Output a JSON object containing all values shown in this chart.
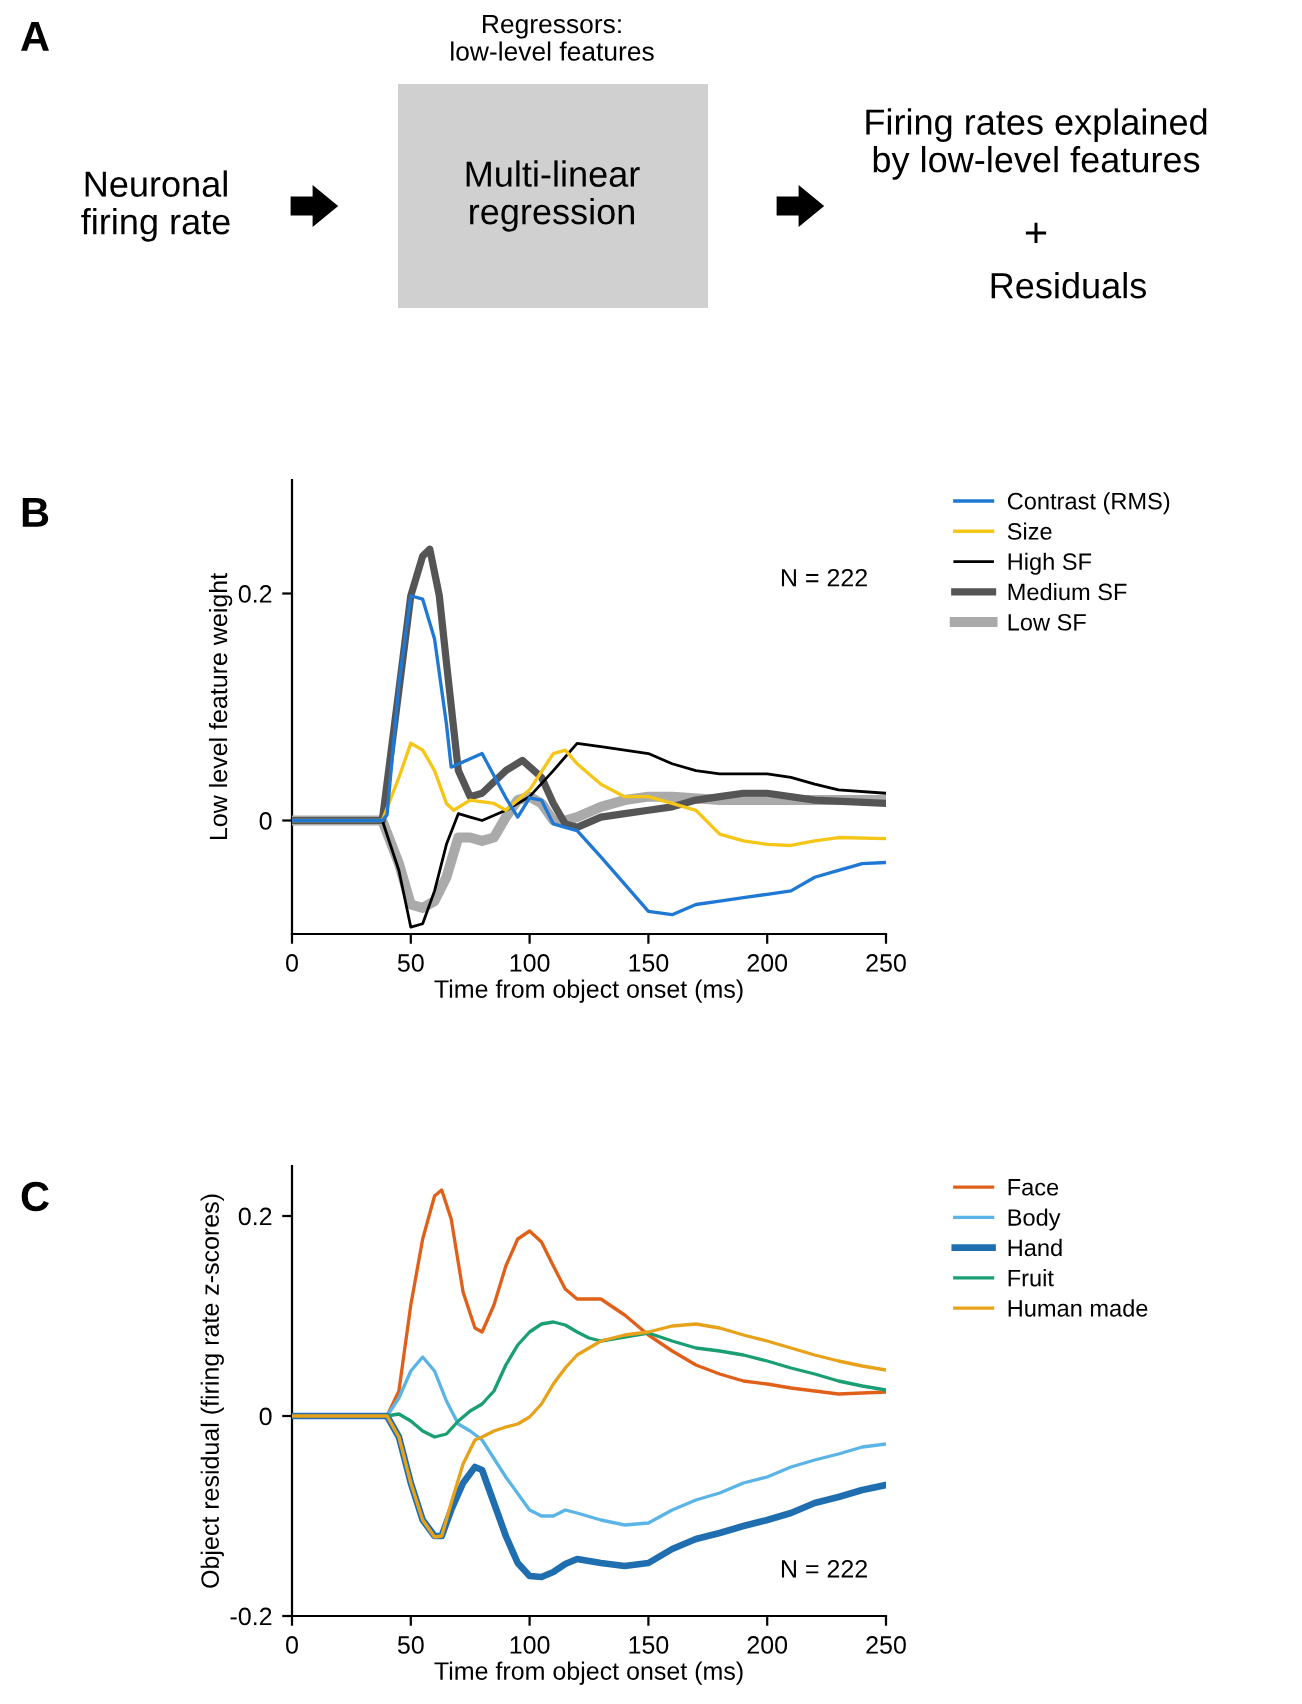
{
  "chart_data": [
    {
      "type": "other",
      "title": "A",
      "annotations": [
        "Neuronal\nfiring rate",
        "Regressors:\nlow-level features",
        "Multi-linear\nregression",
        "Firing rates explained\nby low-level features",
        "+",
        "Residuals"
      ]
    },
    {
      "type": "line",
      "title": "B",
      "xlabel": "Time from object onset (ms)",
      "ylabel": "Low level feature weight",
      "xlim": [
        0,
        250
      ],
      "ylim": [
        -0.1,
        0.3
      ],
      "xticks": [
        0,
        50,
        100,
        150,
        200,
        250
      ],
      "yticks": [
        0,
        0.2
      ],
      "grid": false,
      "legend": "top right",
      "annotations": [
        "N = 222"
      ],
      "series": [
        {
          "name": "Contrast (RMS)",
          "color": "#1f78d4",
          "x": [
            0,
            38,
            40,
            45,
            50,
            55,
            60,
            65,
            67,
            80,
            90,
            95,
            100,
            105,
            110,
            115,
            120,
            130,
            140,
            150,
            160,
            170,
            180,
            190,
            200,
            210,
            220,
            230,
            240,
            250
          ],
          "values": [
            0,
            0,
            0.005,
            0.12,
            0.198,
            0.195,
            0.16,
            0.085,
            0.047,
            0.059,
            0.02,
            0.003,
            0.02,
            0.018,
            -0.003,
            -0.006,
            -0.009,
            -0.032,
            -0.056,
            -0.08,
            -0.083,
            -0.074,
            -0.071,
            -0.068,
            -0.065,
            -0.062,
            -0.05,
            -0.044,
            -0.038,
            -0.037
          ]
        },
        {
          "name": "Size",
          "color": "#f5c518",
          "x": [
            0,
            38,
            45,
            50,
            55,
            60,
            65,
            68,
            75,
            85,
            90,
            100,
            110,
            115,
            120,
            130,
            140,
            150,
            160,
            170,
            180,
            190,
            200,
            210,
            220,
            230,
            250
          ],
          "values": [
            0,
            0,
            0.038,
            0.068,
            0.062,
            0.044,
            0.015,
            0.009,
            0.018,
            0.015,
            0.009,
            0.027,
            0.059,
            0.062,
            0.05,
            0.032,
            0.021,
            0.021,
            0.015,
            0.009,
            -0.012,
            -0.018,
            -0.021,
            -0.022,
            -0.018,
            -0.015,
            -0.016
          ]
        },
        {
          "name": "High SF",
          "color": "#000000",
          "x": [
            0,
            38,
            45,
            50,
            55,
            60,
            65,
            70,
            75,
            80,
            90,
            100,
            110,
            120,
            130,
            140,
            150,
            160,
            170,
            180,
            200,
            210,
            220,
            230,
            250
          ],
          "values": [
            0,
            0,
            -0.044,
            -0.094,
            -0.091,
            -0.062,
            -0.021,
            0.006,
            0.003,
            0,
            0.009,
            0.021,
            0.044,
            0.068,
            0.065,
            0.062,
            0.059,
            0.05,
            0.044,
            0.041,
            0.041,
            0.038,
            0.032,
            0.027,
            0.024
          ]
        },
        {
          "name": "Medium SF",
          "color": "#555555",
          "x": [
            0,
            38,
            45,
            50,
            55,
            58,
            62,
            65,
            70,
            75,
            80,
            90,
            97,
            105,
            110,
            115,
            120,
            130,
            140,
            150,
            160,
            170,
            180,
            190,
            200,
            220,
            250
          ],
          "values": [
            0,
            0,
            0.115,
            0.198,
            0.233,
            0.239,
            0.198,
            0.139,
            0.044,
            0.021,
            0.024,
            0.044,
            0.053,
            0.038,
            0.015,
            -0.003,
            -0.006,
            0.003,
            0.006,
            0.009,
            0.012,
            0.018,
            0.021,
            0.024,
            0.024,
            0.018,
            0.015
          ]
        },
        {
          "name": "Low SF",
          "color": "#aaaaaa",
          "x": [
            0,
            38,
            45,
            50,
            55,
            60,
            65,
            70,
            75,
            80,
            85,
            90,
            95,
            100,
            105,
            110,
            115,
            120,
            130,
            140,
            150,
            160,
            180,
            200,
            220,
            250
          ],
          "values": [
            0,
            0,
            -0.038,
            -0.074,
            -0.077,
            -0.071,
            -0.05,
            -0.015,
            -0.015,
            -0.018,
            -0.015,
            0.003,
            0.018,
            0.021,
            0.015,
            0,
            0,
            0.003,
            0.012,
            0.018,
            0.021,
            0.021,
            0.018,
            0.018,
            0.018,
            0.018
          ]
        }
      ]
    },
    {
      "type": "line",
      "title": "C",
      "xlabel": "Time from object onset (ms)",
      "ylabel": "Object residual (firing rate z-scores)",
      "xlim": [
        0,
        250
      ],
      "ylim": [
        -0.2,
        0.25
      ],
      "xticks": [
        0,
        50,
        100,
        150,
        200,
        250
      ],
      "yticks": [
        {
          "value": -0.2,
          "label": "-0.2"
        },
        0,
        0.2
      ],
      "grid": false,
      "legend": "top right",
      "annotations": [
        "N = 222"
      ],
      "series": [
        {
          "name": "Face",
          "color": "#e0601a",
          "x": [
            40,
            45,
            50,
            55,
            60,
            63,
            67,
            72,
            77,
            80,
            85,
            90,
            95,
            100,
            105,
            110,
            115,
            120,
            130,
            140,
            150,
            160,
            170,
            180,
            190,
            200,
            210,
            220,
            230,
            250
          ],
          "values": [
            0,
            0.025,
            0.111,
            0.177,
            0.22,
            0.226,
            0.197,
            0.124,
            0.088,
            0.084,
            0.111,
            0.15,
            0.177,
            0.185,
            0.174,
            0.15,
            0.127,
            0.117,
            0.117,
            0.101,
            0.081,
            0.065,
            0.051,
            0.042,
            0.035,
            0.032,
            0.028,
            0.025,
            0.022,
            0.024
          ]
        },
        {
          "name": "Body",
          "color": "#5ab4e5",
          "x": [
            40,
            45,
            50,
            55,
            60,
            65,
            70,
            75,
            80,
            90,
            100,
            105,
            110,
            115,
            120,
            130,
            140,
            150,
            160,
            170,
            180,
            190,
            200,
            210,
            220,
            230,
            240,
            250
          ],
          "values": [
            0,
            0.018,
            0.045,
            0.059,
            0.045,
            0.015,
            -0.008,
            -0.015,
            -0.024,
            -0.061,
            -0.094,
            -0.1,
            -0.1,
            -0.094,
            -0.097,
            -0.104,
            -0.109,
            -0.107,
            -0.094,
            -0.084,
            -0.077,
            -0.067,
            -0.061,
            -0.051,
            -0.044,
            -0.038,
            -0.031,
            -0.028
          ]
        },
        {
          "name": "Hand",
          "color": "#1f6eb0",
          "x": [
            0,
            40,
            45,
            50,
            55,
            60,
            63,
            67,
            72,
            77,
            80,
            85,
            90,
            95,
            100,
            105,
            110,
            115,
            120,
            130,
            140,
            150,
            160,
            170,
            180,
            190,
            200,
            210,
            220,
            230,
            240,
            250
          ],
          "values": [
            0,
            0,
            -0.021,
            -0.067,
            -0.104,
            -0.12,
            -0.12,
            -0.094,
            -0.067,
            -0.051,
            -0.054,
            -0.087,
            -0.12,
            -0.147,
            -0.16,
            -0.161,
            -0.156,
            -0.148,
            -0.143,
            -0.147,
            -0.15,
            -0.147,
            -0.133,
            -0.123,
            -0.117,
            -0.11,
            -0.104,
            -0.097,
            -0.087,
            -0.081,
            -0.074,
            -0.069
          ]
        },
        {
          "name": "Fruit",
          "color": "#1a9e74",
          "x": [
            40,
            45,
            50,
            55,
            60,
            65,
            70,
            75,
            80,
            85,
            90,
            95,
            100,
            105,
            110,
            115,
            120,
            125,
            130,
            140,
            150,
            160,
            170,
            180,
            190,
            200,
            210,
            220,
            230,
            240,
            250
          ],
          "values": [
            0,
            0.002,
            -0.005,
            -0.015,
            -0.021,
            -0.018,
            -0.005,
            0.005,
            0.012,
            0.025,
            0.051,
            0.071,
            0.084,
            0.092,
            0.094,
            0.091,
            0.084,
            0.078,
            0.075,
            0.079,
            0.083,
            0.075,
            0.068,
            0.065,
            0.061,
            0.055,
            0.048,
            0.042,
            0.035,
            0.03,
            0.026
          ]
        },
        {
          "name": "Human made",
          "color": "#e8a21a",
          "x": [
            0,
            40,
            45,
            50,
            55,
            60,
            63,
            67,
            72,
            77,
            80,
            85,
            90,
            95,
            100,
            105,
            110,
            115,
            120,
            130,
            140,
            150,
            160,
            170,
            180,
            190,
            200,
            210,
            220,
            230,
            240,
            250
          ],
          "values": [
            0,
            0,
            -0.021,
            -0.067,
            -0.104,
            -0.121,
            -0.12,
            -0.087,
            -0.048,
            -0.024,
            -0.021,
            -0.015,
            -0.011,
            -0.008,
            -0.001,
            0.012,
            0.032,
            0.048,
            0.061,
            0.075,
            0.081,
            0.084,
            0.09,
            0.092,
            0.088,
            0.081,
            0.075,
            0.068,
            0.061,
            0.055,
            0.05,
            0.046
          ]
        }
      ]
    }
  ]
}
